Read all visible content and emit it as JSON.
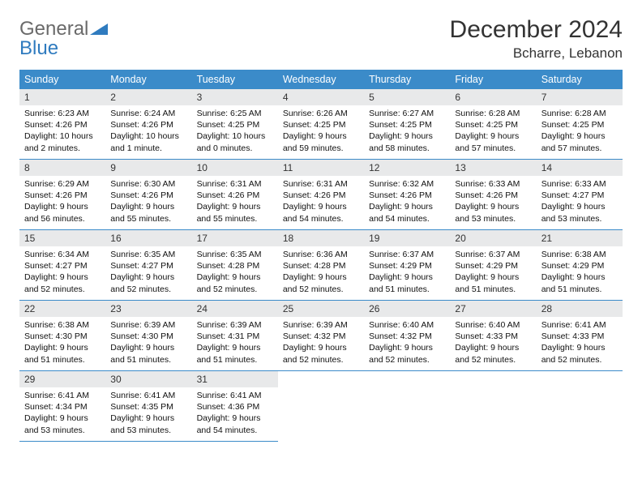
{
  "logo": {
    "line1": "General",
    "line2": "Blue"
  },
  "title": "December 2024",
  "location": "Bcharre, Lebanon",
  "colors": {
    "header_bg": "#3b8bc9",
    "header_text": "#ffffff",
    "daynum_bg": "#e8e9ea",
    "border": "#3b8bc9",
    "logo_gray": "#6a6a6a",
    "logo_blue": "#2f7bbf"
  },
  "weekdays": [
    "Sunday",
    "Monday",
    "Tuesday",
    "Wednesday",
    "Thursday",
    "Friday",
    "Saturday"
  ],
  "weeks": [
    [
      {
        "n": "1",
        "sr": "Sunrise: 6:23 AM",
        "ss": "Sunset: 4:26 PM",
        "dl": "Daylight: 10 hours and 2 minutes."
      },
      {
        "n": "2",
        "sr": "Sunrise: 6:24 AM",
        "ss": "Sunset: 4:26 PM",
        "dl": "Daylight: 10 hours and 1 minute."
      },
      {
        "n": "3",
        "sr": "Sunrise: 6:25 AM",
        "ss": "Sunset: 4:25 PM",
        "dl": "Daylight: 10 hours and 0 minutes."
      },
      {
        "n": "4",
        "sr": "Sunrise: 6:26 AM",
        "ss": "Sunset: 4:25 PM",
        "dl": "Daylight: 9 hours and 59 minutes."
      },
      {
        "n": "5",
        "sr": "Sunrise: 6:27 AM",
        "ss": "Sunset: 4:25 PM",
        "dl": "Daylight: 9 hours and 58 minutes."
      },
      {
        "n": "6",
        "sr": "Sunrise: 6:28 AM",
        "ss": "Sunset: 4:25 PM",
        "dl": "Daylight: 9 hours and 57 minutes."
      },
      {
        "n": "7",
        "sr": "Sunrise: 6:28 AM",
        "ss": "Sunset: 4:25 PM",
        "dl": "Daylight: 9 hours and 57 minutes."
      }
    ],
    [
      {
        "n": "8",
        "sr": "Sunrise: 6:29 AM",
        "ss": "Sunset: 4:26 PM",
        "dl": "Daylight: 9 hours and 56 minutes."
      },
      {
        "n": "9",
        "sr": "Sunrise: 6:30 AM",
        "ss": "Sunset: 4:26 PM",
        "dl": "Daylight: 9 hours and 55 minutes."
      },
      {
        "n": "10",
        "sr": "Sunrise: 6:31 AM",
        "ss": "Sunset: 4:26 PM",
        "dl": "Daylight: 9 hours and 55 minutes."
      },
      {
        "n": "11",
        "sr": "Sunrise: 6:31 AM",
        "ss": "Sunset: 4:26 PM",
        "dl": "Daylight: 9 hours and 54 minutes."
      },
      {
        "n": "12",
        "sr": "Sunrise: 6:32 AM",
        "ss": "Sunset: 4:26 PM",
        "dl": "Daylight: 9 hours and 54 minutes."
      },
      {
        "n": "13",
        "sr": "Sunrise: 6:33 AM",
        "ss": "Sunset: 4:26 PM",
        "dl": "Daylight: 9 hours and 53 minutes."
      },
      {
        "n": "14",
        "sr": "Sunrise: 6:33 AM",
        "ss": "Sunset: 4:27 PM",
        "dl": "Daylight: 9 hours and 53 minutes."
      }
    ],
    [
      {
        "n": "15",
        "sr": "Sunrise: 6:34 AM",
        "ss": "Sunset: 4:27 PM",
        "dl": "Daylight: 9 hours and 52 minutes."
      },
      {
        "n": "16",
        "sr": "Sunrise: 6:35 AM",
        "ss": "Sunset: 4:27 PM",
        "dl": "Daylight: 9 hours and 52 minutes."
      },
      {
        "n": "17",
        "sr": "Sunrise: 6:35 AM",
        "ss": "Sunset: 4:28 PM",
        "dl": "Daylight: 9 hours and 52 minutes."
      },
      {
        "n": "18",
        "sr": "Sunrise: 6:36 AM",
        "ss": "Sunset: 4:28 PM",
        "dl": "Daylight: 9 hours and 52 minutes."
      },
      {
        "n": "19",
        "sr": "Sunrise: 6:37 AM",
        "ss": "Sunset: 4:29 PM",
        "dl": "Daylight: 9 hours and 51 minutes."
      },
      {
        "n": "20",
        "sr": "Sunrise: 6:37 AM",
        "ss": "Sunset: 4:29 PM",
        "dl": "Daylight: 9 hours and 51 minutes."
      },
      {
        "n": "21",
        "sr": "Sunrise: 6:38 AM",
        "ss": "Sunset: 4:29 PM",
        "dl": "Daylight: 9 hours and 51 minutes."
      }
    ],
    [
      {
        "n": "22",
        "sr": "Sunrise: 6:38 AM",
        "ss": "Sunset: 4:30 PM",
        "dl": "Daylight: 9 hours and 51 minutes."
      },
      {
        "n": "23",
        "sr": "Sunrise: 6:39 AM",
        "ss": "Sunset: 4:30 PM",
        "dl": "Daylight: 9 hours and 51 minutes."
      },
      {
        "n": "24",
        "sr": "Sunrise: 6:39 AM",
        "ss": "Sunset: 4:31 PM",
        "dl": "Daylight: 9 hours and 51 minutes."
      },
      {
        "n": "25",
        "sr": "Sunrise: 6:39 AM",
        "ss": "Sunset: 4:32 PM",
        "dl": "Daylight: 9 hours and 52 minutes."
      },
      {
        "n": "26",
        "sr": "Sunrise: 6:40 AM",
        "ss": "Sunset: 4:32 PM",
        "dl": "Daylight: 9 hours and 52 minutes."
      },
      {
        "n": "27",
        "sr": "Sunrise: 6:40 AM",
        "ss": "Sunset: 4:33 PM",
        "dl": "Daylight: 9 hours and 52 minutes."
      },
      {
        "n": "28",
        "sr": "Sunrise: 6:41 AM",
        "ss": "Sunset: 4:33 PM",
        "dl": "Daylight: 9 hours and 52 minutes."
      }
    ],
    [
      {
        "n": "29",
        "sr": "Sunrise: 6:41 AM",
        "ss": "Sunset: 4:34 PM",
        "dl": "Daylight: 9 hours and 53 minutes."
      },
      {
        "n": "30",
        "sr": "Sunrise: 6:41 AM",
        "ss": "Sunset: 4:35 PM",
        "dl": "Daylight: 9 hours and 53 minutes."
      },
      {
        "n": "31",
        "sr": "Sunrise: 6:41 AM",
        "ss": "Sunset: 4:36 PM",
        "dl": "Daylight: 9 hours and 54 minutes."
      },
      null,
      null,
      null,
      null
    ]
  ]
}
